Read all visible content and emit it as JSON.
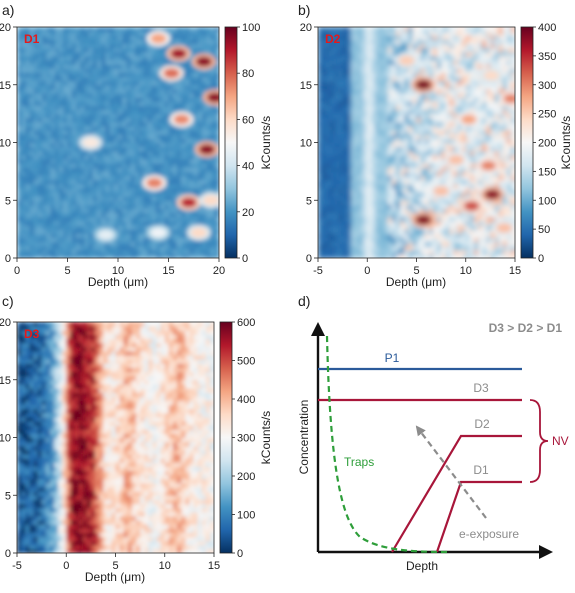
{
  "colors": {
    "cmap": [
      "#053061",
      "#2166ac",
      "#4393c3",
      "#92c5de",
      "#d1e5f0",
      "#f7f7f7",
      "#fddbc7",
      "#f4a582",
      "#d6604d",
      "#b2182b",
      "#67001f"
    ],
    "tag": "#e31a1c",
    "p1": "#2a5a9a",
    "nv": "#a8163a",
    "traps": "#2e9e3a",
    "arrow": "#8c8c8c",
    "ordering": "#8c8c8c"
  },
  "chart_data": [
    {
      "type": "heatmap",
      "panel_letter": "a)",
      "tag": "D1",
      "xlabel": "Depth (μm)",
      "ylabel": "",
      "xlim": [
        0,
        20
      ],
      "ylim": [
        0,
        20
      ],
      "xticks": [
        "0",
        "5",
        "10",
        "15",
        "20"
      ],
      "yticks": [
        "0",
        "5",
        "10",
        "15",
        "20"
      ],
      "colorbar": {
        "label": "kCounts/s",
        "range": [
          0,
          100
        ],
        "ticks": [
          "0",
          "20",
          "40",
          "60",
          "80",
          "100"
        ]
      },
      "background_level": 20,
      "hot_spots": [
        {
          "x": 7.3,
          "y": 10.0,
          "value": 55
        },
        {
          "x": 13.6,
          "y": 6.5,
          "value": 75
        },
        {
          "x": 14.0,
          "y": 19.0,
          "value": 70
        },
        {
          "x": 15.3,
          "y": 16.0,
          "value": 78
        },
        {
          "x": 16.0,
          "y": 17.7,
          "value": 92
        },
        {
          "x": 16.3,
          "y": 12.0,
          "value": 74
        },
        {
          "x": 17.0,
          "y": 4.8,
          "value": 88
        },
        {
          "x": 18.8,
          "y": 9.4,
          "value": 95
        },
        {
          "x": 18.5,
          "y": 17.0,
          "value": 95
        },
        {
          "x": 19.6,
          "y": 13.9,
          "value": 95
        },
        {
          "x": 18.0,
          "y": 2.2,
          "value": 60
        },
        {
          "x": 14.0,
          "y": 2.2,
          "value": 48
        },
        {
          "x": 8.8,
          "y": 2.0,
          "value": 45
        },
        {
          "x": 19.2,
          "y": 5.0,
          "value": 60
        }
      ]
    },
    {
      "type": "heatmap",
      "panel_letter": "b)",
      "tag": "D2",
      "xlabel": "Depth (μm)",
      "ylabel": "",
      "xlim": [
        -5,
        15
      ],
      "ylim": [
        0,
        20
      ],
      "xticks": [
        "-5",
        "0",
        "5",
        "10",
        "15"
      ],
      "yticks": [
        "0",
        "5",
        "10",
        "15",
        "20"
      ],
      "colorbar": {
        "label": "kCounts/s",
        "range": [
          0,
          400
        ],
        "ticks": [
          "0",
          "50",
          "100",
          "150",
          "200",
          "250",
          "300",
          "350",
          "400"
        ]
      },
      "dark_band": [
        -5,
        -1.5
      ],
      "bright_stripe": 0.2,
      "hot_spots": [
        {
          "x": 5.7,
          "y": 15.0,
          "value": 390
        },
        {
          "x": 5.7,
          "y": 3.3,
          "value": 385
        },
        {
          "x": 12.7,
          "y": 5.5,
          "value": 380
        },
        {
          "x": 10.6,
          "y": 4.5,
          "value": 330
        },
        {
          "x": 12.3,
          "y": 8.0,
          "value": 300
        },
        {
          "x": 10.3,
          "y": 12.0,
          "value": 280
        },
        {
          "x": 14.6,
          "y": 13.8,
          "value": 300
        },
        {
          "x": 7.5,
          "y": 5.8,
          "value": 260
        },
        {
          "x": 9.0,
          "y": 8.5,
          "value": 260
        },
        {
          "x": 4.0,
          "y": 17.1,
          "value": 250
        },
        {
          "x": 13.9,
          "y": 2.6,
          "value": 260
        },
        {
          "x": 12.6,
          "y": 15.8,
          "value": 240
        }
      ]
    },
    {
      "type": "heatmap",
      "panel_letter": "c)",
      "tag": "D3",
      "xlabel": "Depth (μm)",
      "ylabel": "",
      "xlim": [
        -5,
        15
      ],
      "ylim": [
        0,
        20
      ],
      "xticks": [
        "-5",
        "0",
        "5",
        "10",
        "15"
      ],
      "yticks": [
        "0",
        "5",
        "10",
        "15",
        "20"
      ],
      "colorbar": {
        "label": "kCounts/s",
        "range": [
          0,
          600
        ],
        "ticks": [
          "0",
          "100",
          "200",
          "300",
          "400",
          "500",
          "600"
        ]
      },
      "depth_profile": [
        {
          "x": -5,
          "value": 40
        },
        {
          "x": -2.5,
          "value": 70
        },
        {
          "x": -1.2,
          "value": 150
        },
        {
          "x": -0.4,
          "value": 290
        },
        {
          "x": 0.5,
          "value": 560
        },
        {
          "x": 1.5,
          "value": 580
        },
        {
          "x": 2.8,
          "value": 520
        },
        {
          "x": 4.0,
          "value": 330
        },
        {
          "x": 5.0,
          "value": 330
        },
        {
          "x": 6.2,
          "value": 410
        },
        {
          "x": 7.3,
          "value": 350
        },
        {
          "x": 9.0,
          "value": 300
        },
        {
          "x": 11.3,
          "value": 400
        },
        {
          "x": 12.8,
          "value": 320
        },
        {
          "x": 15,
          "value": 300
        }
      ]
    }
  ],
  "diagram": {
    "panel_letter": "d)",
    "ordering_label": "D3 > D2 > D1",
    "ylabel": "Concentration",
    "xlabel": "Depth",
    "p1_label": "P1",
    "d3_label": "D3",
    "d2_label": "D2",
    "d1_label": "D1",
    "nv_label": "NV",
    "traps_label": "Traps",
    "exposure_label": "e-exposure"
  }
}
